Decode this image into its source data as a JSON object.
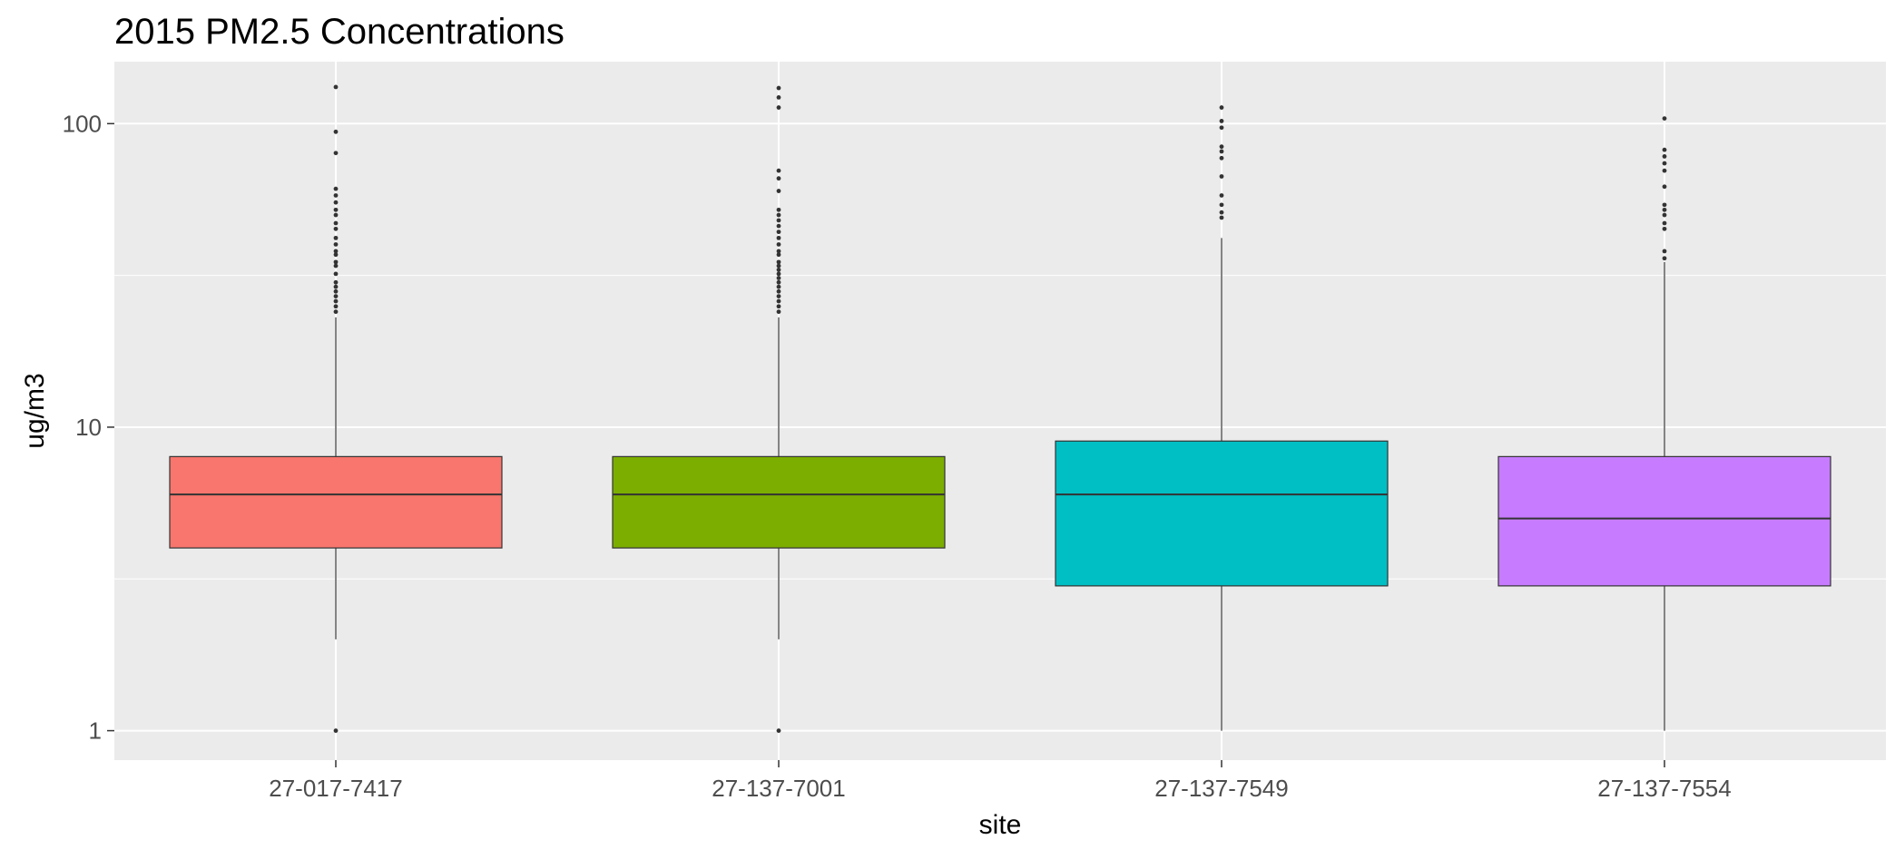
{
  "chart_data": {
    "type": "boxplot",
    "title": "2015 PM2.5 Concentrations",
    "xlabel": "site",
    "ylabel": "ug/m3",
    "yscale": "log10",
    "ylim": [
      0.8,
      160
    ],
    "yticks": [
      1,
      10,
      100
    ],
    "ytick_labels": [
      "1",
      "10",
      "100"
    ],
    "grid": true,
    "categories": [
      "27-017-7417",
      "27-137-7001",
      "27-137-7549",
      "27-137-7554"
    ],
    "boxes": [
      {
        "site": "27-017-7417",
        "color": "#F8766D",
        "q1": 4,
        "median": 6,
        "q3": 8,
        "whisker_low": 2,
        "whisker_high": 23,
        "outliers": [
          1,
          24,
          25,
          26,
          27,
          28,
          29,
          30,
          32,
          34,
          35,
          37,
          38,
          40,
          42,
          45,
          47,
          50,
          52,
          55,
          58,
          61,
          80,
          94,
          132
        ]
      },
      {
        "site": "27-137-7001",
        "color": "#7CAE00",
        "q1": 4,
        "median": 6,
        "q3": 8,
        "whisker_low": 2,
        "whisker_high": 23,
        "outliers": [
          1,
          24,
          25,
          26,
          27,
          28,
          29,
          30,
          31,
          32,
          33,
          34,
          35,
          37,
          38,
          40,
          42,
          44,
          46,
          48,
          50,
          52,
          60,
          66,
          70,
          113,
          122,
          131
        ]
      },
      {
        "site": "27-137-7549",
        "color": "#00BFC4",
        "q1": 3,
        "median": 6,
        "q3": 9,
        "whisker_low": 1,
        "whisker_high": 42,
        "outliers": [
          49,
          51,
          54,
          58,
          67,
          77,
          81,
          84,
          97,
          102,
          113
        ]
      },
      {
        "site": "27-137-7554",
        "color": "#C77CFF",
        "q1": 3,
        "median": 5,
        "q3": 8,
        "whisker_low": 1,
        "whisker_high": 35,
        "outliers": [
          36,
          38,
          45,
          47,
          50,
          52,
          54,
          62,
          70,
          74,
          78,
          82,
          104
        ]
      }
    ]
  }
}
